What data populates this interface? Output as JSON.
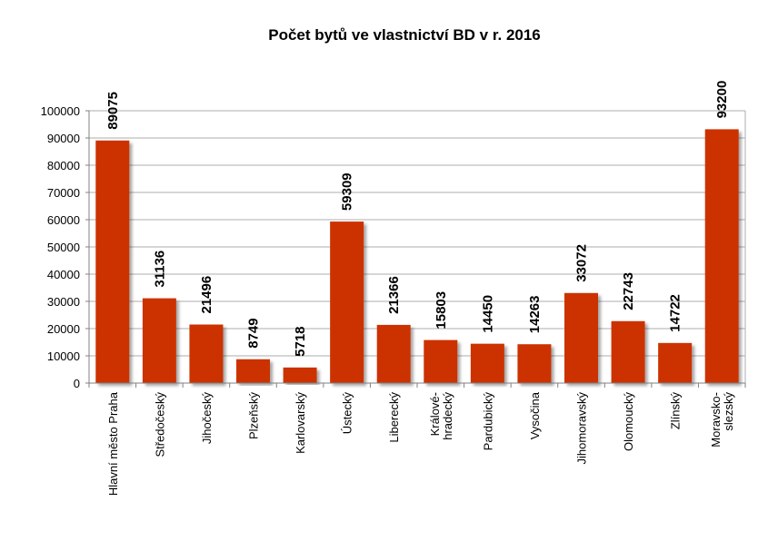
{
  "chart_data": {
    "type": "bar",
    "title": "Počet bytů  ve vlastnictví BD v r. 2016",
    "xlabel": "",
    "ylabel": "",
    "ylim": [
      0,
      100000
    ],
    "yticks": [
      "0",
      "10000",
      "20000",
      "30000",
      "40000",
      "50000",
      "60000",
      "70000",
      "80000",
      "90000",
      "100000"
    ],
    "grid": true,
    "legend": "none",
    "bar_color": "#cc3300",
    "categories": [
      [
        "Hlavní město Praha"
      ],
      [
        "Středočeský"
      ],
      [
        "Jihočeský"
      ],
      [
        "Plzeňský"
      ],
      [
        "Karlovarský"
      ],
      [
        "Ústecký"
      ],
      [
        "Liberecký"
      ],
      [
        "Králové-",
        "hradecký"
      ],
      [
        "Pardubický"
      ],
      [
        "Vysočina"
      ],
      [
        "Jihomoravský"
      ],
      [
        "Olomoucký"
      ],
      [
        "Zlínský"
      ],
      [
        "Moravsko-",
        "slezský"
      ]
    ],
    "values": [
      89075,
      31136,
      21496,
      8749,
      5718,
      59309,
      21366,
      15803,
      14450,
      14263,
      33072,
      22743,
      14722,
      93200
    ],
    "data_labels": [
      "89075",
      "31136",
      "21496",
      "8749",
      "5718",
      "59309",
      "21366",
      "15803",
      "14450",
      "14263",
      "33072",
      "22743",
      "14722",
      "93200"
    ]
  }
}
